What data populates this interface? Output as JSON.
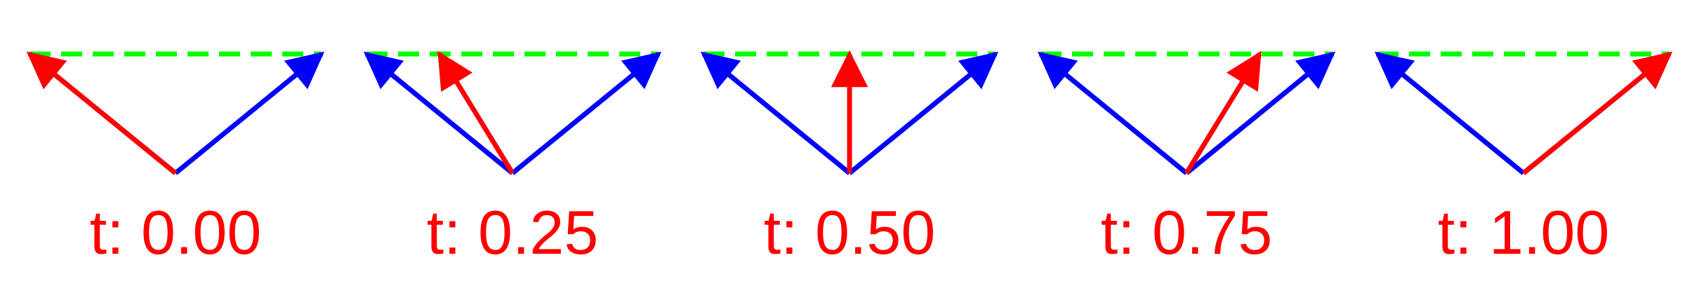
{
  "colors": {
    "base_vectors": "#0000ff",
    "interpolated_vector": "#ff0000",
    "endpoint_line": "#00ff00",
    "label": "#ff0000",
    "background": "#ffffff"
  },
  "panels": [
    {
      "t": 0.0,
      "label": "t: 0.00"
    },
    {
      "t": 0.25,
      "label": "t: 0.25"
    },
    {
      "t": 0.5,
      "label": "t: 0.50"
    },
    {
      "t": 0.75,
      "label": "t: 0.75"
    },
    {
      "t": 1.0,
      "label": "t: 1.00"
    }
  ]
}
